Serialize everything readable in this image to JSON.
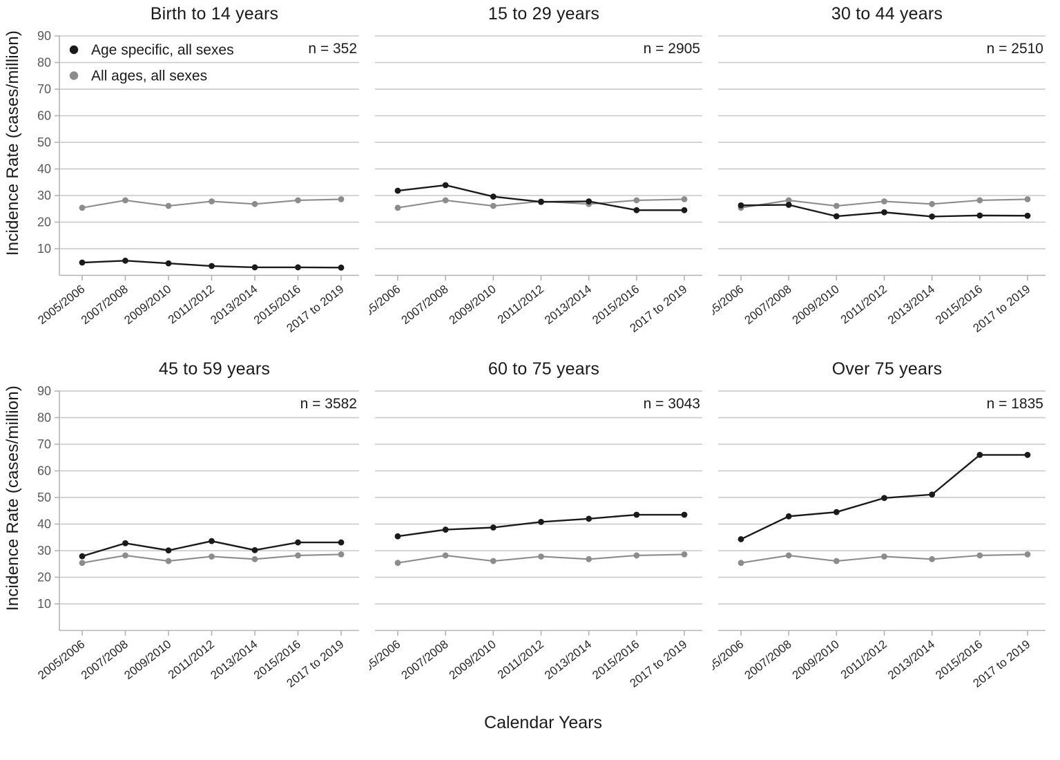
{
  "figure": {
    "ylabel": "Incidence Rate (cases/million)",
    "xlabel": "Calendar Years"
  },
  "legend": {
    "items": [
      {
        "label": "Age specific, all sexes",
        "color": "#1a1a1a"
      },
      {
        "label": "All ages, all sexes",
        "color": "#8c8c8c"
      }
    ]
  },
  "chart_data": {
    "type": "line",
    "categories": [
      "2005/2006",
      "2007/2008",
      "2009/2010",
      "2011/2012",
      "2013/2014",
      "2015/2016",
      "2017 to 2019"
    ],
    "ylim": [
      0,
      90
    ],
    "yticks": [
      10,
      20,
      30,
      40,
      50,
      60,
      70,
      80,
      90
    ],
    "grid": true,
    "legend_position": "top-left of first panel",
    "colors": {
      "age_specific": "#1a1a1a",
      "all_ages": "#8c8c8c",
      "gridline": "#c7c7c7",
      "axis": "#b3b3b3",
      "tick_label": "#595959",
      "x_label": "#262626"
    },
    "panels": [
      {
        "title": "Birth to 14 years",
        "n_label": "n = 352",
        "series": [
          {
            "name": "Age specific, all sexes",
            "values": [
              4.8,
              5.5,
              4.5,
              3.5,
              3.0,
              3.0,
              2.9
            ]
          },
          {
            "name": "All ages, all sexes",
            "values": [
              25.4,
              28.2,
              26.1,
              27.8,
              26.8,
              28.2,
              28.6
            ]
          }
        ]
      },
      {
        "title": "15 to 29 years",
        "n_label": "n = 2905",
        "series": [
          {
            "name": "Age specific, all sexes",
            "values": [
              31.8,
              33.9,
              29.6,
              27.6,
              27.8,
              24.5,
              24.5
            ]
          },
          {
            "name": "All ages, all sexes",
            "values": [
              25.4,
              28.2,
              26.1,
              27.8,
              26.8,
              28.2,
              28.6
            ]
          }
        ]
      },
      {
        "title": "30 to 44 years",
        "n_label": "n = 2510",
        "series": [
          {
            "name": "Age specific, all sexes",
            "values": [
              26.3,
              26.5,
              22.2,
              23.7,
              22.1,
              22.5,
              22.4
            ]
          },
          {
            "name": "All ages, all sexes",
            "values": [
              25.4,
              28.2,
              26.1,
              27.8,
              26.8,
              28.2,
              28.6
            ]
          }
        ]
      },
      {
        "title": "45 to 59 years",
        "n_label": "n = 3582",
        "series": [
          {
            "name": "Age specific, all sexes",
            "values": [
              27.9,
              32.8,
              30.1,
              33.6,
              30.2,
              33.1,
              33.1
            ]
          },
          {
            "name": "All ages, all sexes",
            "values": [
              25.4,
              28.2,
              26.1,
              27.8,
              26.8,
              28.2,
              28.6
            ]
          }
        ]
      },
      {
        "title": "60 to 75 years",
        "n_label": "n = 3043",
        "series": [
          {
            "name": "Age specific, all sexes",
            "values": [
              35.4,
              37.9,
              38.7,
              40.8,
              42.0,
              43.5,
              43.5
            ]
          },
          {
            "name": "All ages, all sexes",
            "values": [
              25.4,
              28.2,
              26.1,
              27.8,
              26.8,
              28.2,
              28.6
            ]
          }
        ]
      },
      {
        "title": "Over 75 years",
        "n_label": "n = 1835",
        "series": [
          {
            "name": "Age specific, all sexes",
            "values": [
              34.3,
              42.9,
              44.5,
              49.8,
              51.1,
              66.0,
              66.0
            ]
          },
          {
            "name": "All ages, all sexes",
            "values": [
              25.4,
              28.2,
              26.1,
              27.8,
              26.8,
              28.2,
              28.6
            ]
          }
        ]
      }
    ]
  }
}
